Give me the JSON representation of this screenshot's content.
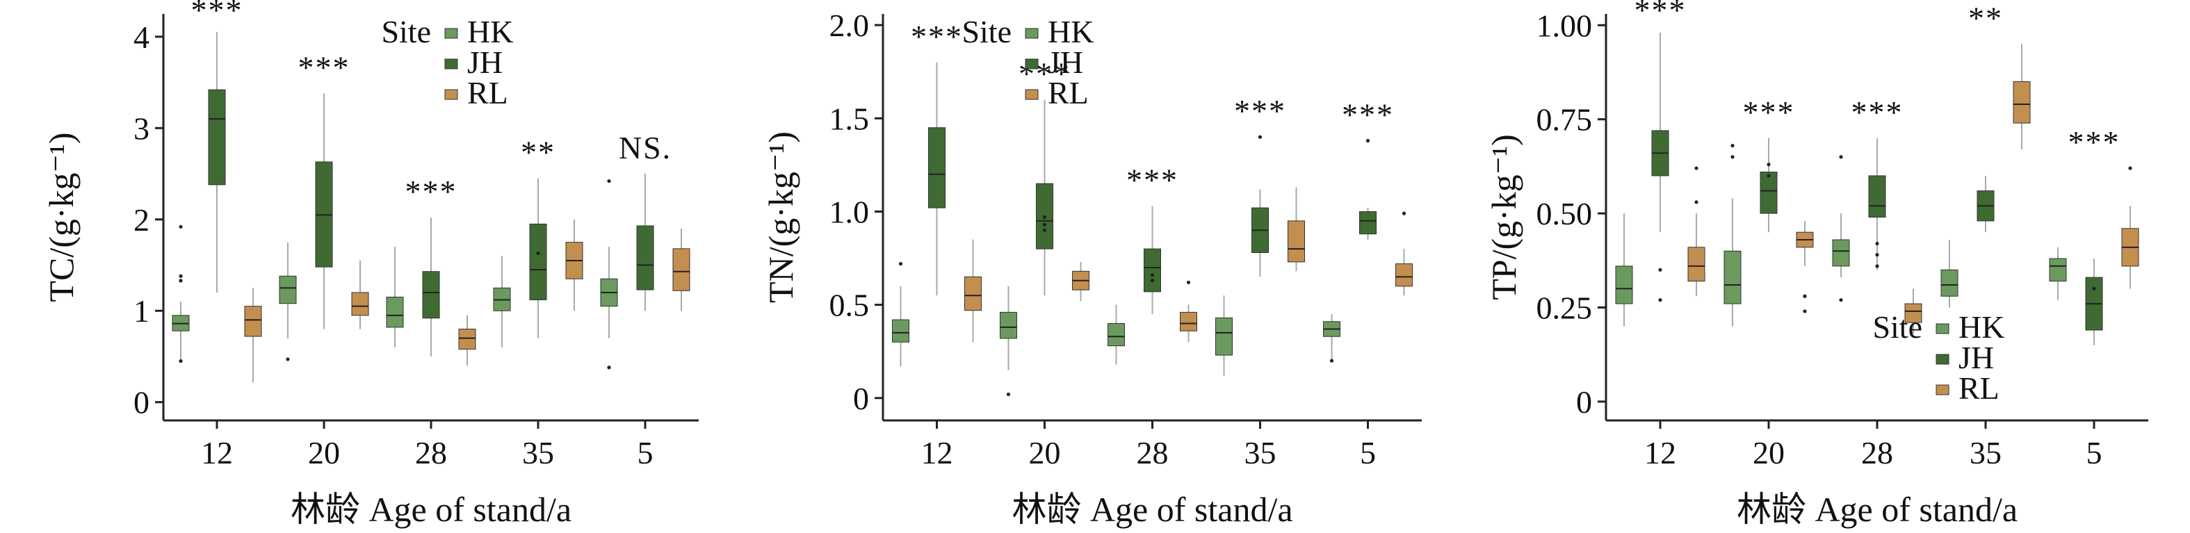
{
  "chart_data": [
    {
      "type": "box",
      "id": "tc",
      "ylabel": "TC/(g·kg⁻¹)",
      "xlabel": "林龄 Age of stand/a",
      "ylim": [
        -0.2,
        4.25
      ],
      "yticks": [
        0,
        1,
        2,
        3,
        4
      ],
      "ytick_labels": [
        "0",
        "1",
        "2",
        "3",
        "4"
      ],
      "categories": [
        "12",
        "20",
        "28",
        "35",
        "5"
      ],
      "legend": {
        "title": "Site",
        "position": "top-right",
        "entries": [
          "HK",
          "JH",
          "RL"
        ]
      },
      "significance": [
        "***",
        "***",
        "***",
        "**",
        "NS."
      ],
      "series": [
        {
          "name": "HK",
          "boxes": [
            {
              "whisker_low": 0.45,
              "q1": 0.78,
              "median": 0.86,
              "q3": 0.95,
              "whisker_high": 1.1,
              "outliers": [
                0.45,
                1.33,
                1.38,
                1.92
              ]
            },
            {
              "whisker_low": 0.7,
              "q1": 1.08,
              "median": 1.25,
              "q3": 1.38,
              "whisker_high": 1.75,
              "outliers": [
                0.47
              ]
            },
            {
              "whisker_low": 0.6,
              "q1": 0.82,
              "median": 0.95,
              "q3": 1.15,
              "whisker_high": 1.7,
              "outliers": []
            },
            {
              "whisker_low": 0.6,
              "q1": 1.0,
              "median": 1.12,
              "q3": 1.25,
              "whisker_high": 1.6,
              "outliers": []
            },
            {
              "whisker_low": 0.7,
              "q1": 1.05,
              "median": 1.2,
              "q3": 1.35,
              "whisker_high": 1.7,
              "outliers": [
                0.38,
                2.42
              ]
            }
          ]
        },
        {
          "name": "JH",
          "boxes": [
            {
              "whisker_low": 1.2,
              "q1": 2.38,
              "median": 3.1,
              "q3": 3.42,
              "whisker_high": 4.05,
              "outliers": []
            },
            {
              "whisker_low": 0.8,
              "q1": 1.48,
              "median": 2.05,
              "q3": 2.63,
              "whisker_high": 3.38,
              "outliers": []
            },
            {
              "whisker_low": 0.5,
              "q1": 0.92,
              "median": 1.2,
              "q3": 1.43,
              "whisker_high": 2.02,
              "outliers": []
            },
            {
              "whisker_low": 0.7,
              "q1": 1.12,
              "median": 1.45,
              "q3": 1.95,
              "whisker_high": 2.45,
              "outliers": [
                1.63
              ]
            },
            {
              "whisker_low": 1.0,
              "q1": 1.23,
              "median": 1.5,
              "q3": 1.93,
              "whisker_high": 2.5,
              "outliers": []
            }
          ]
        },
        {
          "name": "RL",
          "boxes": [
            {
              "whisker_low": 0.22,
              "q1": 0.72,
              "median": 0.9,
              "q3": 1.05,
              "whisker_high": 1.25,
              "outliers": []
            },
            {
              "whisker_low": 0.8,
              "q1": 0.95,
              "median": 1.05,
              "q3": 1.2,
              "whisker_high": 1.55,
              "outliers": []
            },
            {
              "whisker_low": 0.4,
              "q1": 0.58,
              "median": 0.7,
              "q3": 0.8,
              "whisker_high": 0.95,
              "outliers": []
            },
            {
              "whisker_low": 1.0,
              "q1": 1.35,
              "median": 1.55,
              "q3": 1.75,
              "whisker_high": 2.0,
              "outliers": []
            },
            {
              "whisker_low": 1.0,
              "q1": 1.22,
              "median": 1.43,
              "q3": 1.68,
              "whisker_high": 1.9,
              "outliers": []
            }
          ]
        }
      ]
    },
    {
      "type": "box",
      "id": "tn",
      "ylabel": "TN/(g·kg⁻¹)",
      "xlabel": "林龄 Age of stand/a",
      "ylim": [
        -0.12,
        2.06
      ],
      "yticks": [
        0,
        0.5,
        1.0,
        1.5,
        2.0
      ],
      "ytick_labels": [
        "0",
        "0.5",
        "1.0",
        "1.5",
        "2.0"
      ],
      "categories": [
        "12",
        "20",
        "28",
        "35",
        "5"
      ],
      "legend": {
        "title": "Site",
        "position": "top-center",
        "entries": [
          "HK",
          "JH",
          "RL"
        ]
      },
      "significance": [
        "***",
        "***",
        "***",
        "***",
        "***"
      ],
      "series": [
        {
          "name": "HK",
          "boxes": [
            {
              "whisker_low": 0.17,
              "q1": 0.3,
              "median": 0.35,
              "q3": 0.42,
              "whisker_high": 0.6,
              "outliers": [
                0.72
              ]
            },
            {
              "whisker_low": 0.15,
              "q1": 0.32,
              "median": 0.38,
              "q3": 0.46,
              "whisker_high": 0.6,
              "outliers": [
                0.02
              ]
            },
            {
              "whisker_low": 0.18,
              "q1": 0.28,
              "median": 0.33,
              "q3": 0.4,
              "whisker_high": 0.5,
              "outliers": []
            },
            {
              "whisker_low": 0.12,
              "q1": 0.23,
              "median": 0.35,
              "q3": 0.43,
              "whisker_high": 0.55,
              "outliers": []
            },
            {
              "whisker_low": 0.2,
              "q1": 0.33,
              "median": 0.37,
              "q3": 0.41,
              "whisker_high": 0.45,
              "outliers": [
                0.2
              ]
            }
          ]
        },
        {
          "name": "JH",
          "boxes": [
            {
              "whisker_low": 0.55,
              "q1": 1.02,
              "median": 1.2,
              "q3": 1.45,
              "whisker_high": 1.8,
              "outliers": []
            },
            {
              "whisker_low": 0.55,
              "q1": 0.8,
              "median": 0.95,
              "q3": 1.15,
              "whisker_high": 1.6,
              "outliers": [
                0.9,
                0.93,
                0.97
              ]
            },
            {
              "whisker_low": 0.45,
              "q1": 0.57,
              "median": 0.7,
              "q3": 0.8,
              "whisker_high": 1.03,
              "outliers": [
                0.63,
                0.66
              ]
            },
            {
              "whisker_low": 0.65,
              "q1": 0.78,
              "median": 0.9,
              "q3": 1.02,
              "whisker_high": 1.12,
              "outliers": [
                1.4
              ]
            },
            {
              "whisker_low": 0.85,
              "q1": 0.88,
              "median": 0.95,
              "q3": 1.0,
              "whisker_high": 1.02,
              "outliers": [
                1.38
              ]
            }
          ]
        },
        {
          "name": "RL",
          "boxes": [
            {
              "whisker_low": 0.3,
              "q1": 0.47,
              "median": 0.55,
              "q3": 0.65,
              "whisker_high": 0.85,
              "outliers": []
            },
            {
              "whisker_low": 0.52,
              "q1": 0.58,
              "median": 0.63,
              "q3": 0.68,
              "whisker_high": 0.73,
              "outliers": []
            },
            {
              "whisker_low": 0.3,
              "q1": 0.36,
              "median": 0.4,
              "q3": 0.46,
              "whisker_high": 0.5,
              "outliers": [
                0.62
              ]
            },
            {
              "whisker_low": 0.68,
              "q1": 0.73,
              "median": 0.8,
              "q3": 0.95,
              "whisker_high": 1.13,
              "outliers": []
            },
            {
              "whisker_low": 0.55,
              "q1": 0.6,
              "median": 0.65,
              "q3": 0.72,
              "whisker_high": 0.8,
              "outliers": [
                0.99
              ]
            }
          ]
        }
      ]
    },
    {
      "type": "box",
      "id": "tp",
      "ylabel": "TP/(g·kg⁻¹)",
      "xlabel": "林龄 Age of stand/a",
      "ylim": [
        -0.05,
        1.03
      ],
      "yticks": [
        0,
        0.25,
        0.5,
        0.75,
        1.0
      ],
      "ytick_labels": [
        "0",
        "0.25",
        "0.50",
        "0.75",
        "1.00"
      ],
      "categories": [
        "12",
        "20",
        "28",
        "35",
        "5"
      ],
      "legend": {
        "title": "Site",
        "position": "bottom-right",
        "entries": [
          "HK",
          "JH",
          "RL"
        ]
      },
      "significance": [
        "***",
        "***",
        "***",
        "**",
        "***"
      ],
      "series": [
        {
          "name": "HK",
          "boxes": [
            {
              "whisker_low": 0.2,
              "q1": 0.26,
              "median": 0.3,
              "q3": 0.36,
              "whisker_high": 0.5,
              "outliers": []
            },
            {
              "whisker_low": 0.2,
              "q1": 0.26,
              "median": 0.31,
              "q3": 0.4,
              "whisker_high": 0.54,
              "outliers": [
                0.65,
                0.68
              ]
            },
            {
              "whisker_low": 0.33,
              "q1": 0.36,
              "median": 0.4,
              "q3": 0.43,
              "whisker_high": 0.5,
              "outliers": [
                0.27,
                0.65
              ]
            },
            {
              "whisker_low": 0.25,
              "q1": 0.28,
              "median": 0.31,
              "q3": 0.35,
              "whisker_high": 0.43,
              "outliers": []
            },
            {
              "whisker_low": 0.27,
              "q1": 0.32,
              "median": 0.36,
              "q3": 0.38,
              "whisker_high": 0.41,
              "outliers": []
            }
          ]
        },
        {
          "name": "JH",
          "boxes": [
            {
              "whisker_low": 0.45,
              "q1": 0.6,
              "median": 0.66,
              "q3": 0.72,
              "whisker_high": 0.98,
              "outliers": [
                0.27,
                0.35
              ]
            },
            {
              "whisker_low": 0.45,
              "q1": 0.5,
              "median": 0.56,
              "q3": 0.61,
              "whisker_high": 0.7,
              "outliers": [
                0.63,
                0.6
              ]
            },
            {
              "whisker_low": 0.35,
              "q1": 0.49,
              "median": 0.52,
              "q3": 0.6,
              "whisker_high": 0.7,
              "outliers": [
                0.36,
                0.39,
                0.42
              ]
            },
            {
              "whisker_low": 0.45,
              "q1": 0.48,
              "median": 0.52,
              "q3": 0.56,
              "whisker_high": 0.6,
              "outliers": []
            },
            {
              "whisker_low": 0.15,
              "q1": 0.19,
              "median": 0.26,
              "q3": 0.33,
              "whisker_high": 0.38,
              "outliers": [
                0.3
              ]
            }
          ]
        },
        {
          "name": "RL",
          "boxes": [
            {
              "whisker_low": 0.28,
              "q1": 0.32,
              "median": 0.36,
              "q3": 0.41,
              "whisker_high": 0.5,
              "outliers": [
                0.53,
                0.62
              ]
            },
            {
              "whisker_low": 0.36,
              "q1": 0.41,
              "median": 0.43,
              "q3": 0.45,
              "whisker_high": 0.48,
              "outliers": [
                0.24,
                0.28
              ]
            },
            {
              "whisker_low": 0.18,
              "q1": 0.21,
              "median": 0.24,
              "q3": 0.26,
              "whisker_high": 0.3,
              "outliers": []
            },
            {
              "whisker_low": 0.67,
              "q1": 0.74,
              "median": 0.79,
              "q3": 0.85,
              "whisker_high": 0.95,
              "outliers": []
            },
            {
              "whisker_low": 0.3,
              "q1": 0.36,
              "median": 0.41,
              "q3": 0.46,
              "whisker_high": 0.52,
              "outliers": [
                0.62
              ]
            }
          ]
        }
      ]
    }
  ],
  "colors": {
    "HK": "#6b9a5e",
    "JH": "#3f6b33",
    "RL": "#c38f4f",
    "outline": "#333333"
  }
}
